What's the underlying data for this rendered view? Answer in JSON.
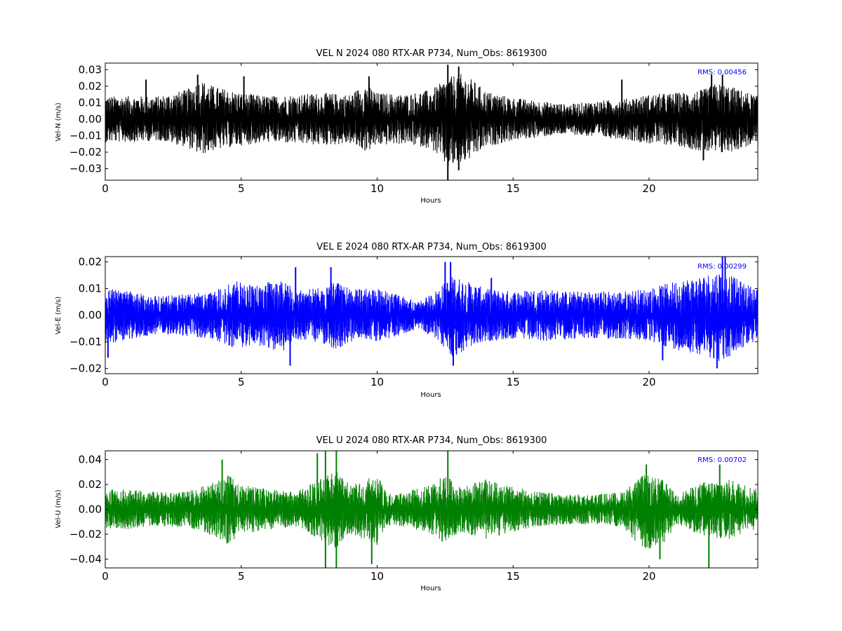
{
  "chart_data": [
    {
      "type": "line",
      "title": "VEL N 2024 080 RTX-AR  P734, Num_Obs: 8619300",
      "xlabel": "Hours",
      "ylabel": "Vel-N (m/s)",
      "xlim": [
        0,
        24
      ],
      "ylim": [
        -0.037,
        0.034
      ],
      "x_ticks": [
        0,
        5,
        10,
        15,
        20
      ],
      "x_tick_labels": [
        "0",
        "5",
        "10",
        "15",
        "20"
      ],
      "y_ticks": [
        -0.03,
        -0.02,
        -0.01,
        0.0,
        0.01,
        0.02,
        0.03
      ],
      "y_tick_labels": [
        "−0.03",
        "−0.02",
        "−0.01",
        "0.00",
        "0.01",
        "0.02",
        "0.03"
      ],
      "grid": false,
      "annotation": "RMS:  0.00456",
      "annotation_color": "#0000ff",
      "series": [
        {
          "color": "#000000",
          "envelope": {
            "hours": [
              0,
              1,
              2,
              3,
              3.5,
              4,
              5,
              6,
              7,
              8,
              9,
              9.6,
              10,
              11,
              12,
              12.6,
              13,
              13.5,
              14,
              15,
              16,
              17,
              18,
              19,
              20,
              21,
              22,
              22.5,
              23,
              24
            ],
            "upper": [
              0.014,
              0.014,
              0.014,
              0.018,
              0.024,
              0.02,
              0.016,
              0.014,
              0.015,
              0.016,
              0.015,
              0.022,
              0.016,
              0.015,
              0.018,
              0.025,
              0.028,
              0.024,
              0.017,
              0.013,
              0.011,
              0.009,
              0.011,
              0.012,
              0.015,
              0.016,
              0.018,
              0.022,
              0.02,
              0.014
            ],
            "lower": [
              -0.014,
              -0.014,
              -0.013,
              -0.017,
              -0.022,
              -0.019,
              -0.016,
              -0.014,
              -0.015,
              -0.016,
              -0.015,
              -0.02,
              -0.016,
              -0.015,
              -0.018,
              -0.03,
              -0.028,
              -0.024,
              -0.017,
              -0.013,
              -0.011,
              -0.009,
              -0.011,
              -0.012,
              -0.015,
              -0.016,
              -0.02,
              -0.022,
              -0.02,
              -0.015
            ]
          },
          "spikes": [
            [
              1.5,
              0.024
            ],
            [
              3.4,
              0.027
            ],
            [
              5.1,
              0.026
            ],
            [
              9.7,
              0.026
            ],
            [
              12.6,
              0.033
            ],
            [
              12.6,
              -0.037
            ],
            [
              13.0,
              0.032
            ],
            [
              13.0,
              -0.031
            ],
            [
              19.0,
              0.024
            ],
            [
              22.0,
              -0.025
            ],
            [
              22.3,
              0.027
            ],
            [
              22.7,
              0.027
            ]
          ]
        }
      ]
    },
    {
      "type": "line",
      "title": "VEL E 2024 080 RTX-AR  P734, Num_Obs: 8619300",
      "xlabel": "Hours",
      "ylabel": "Vel-E (m/s)",
      "xlim": [
        0,
        24
      ],
      "ylim": [
        -0.022,
        0.022
      ],
      "x_ticks": [
        0,
        5,
        10,
        15,
        20
      ],
      "x_tick_labels": [
        "0",
        "5",
        "10",
        "15",
        "20"
      ],
      "y_ticks": [
        -0.02,
        -0.01,
        0.0,
        0.01,
        0.02
      ],
      "y_tick_labels": [
        "−0.02",
        "−0.01",
        "0.00",
        "0.01",
        "0.02"
      ],
      "grid": false,
      "annotation": "RMS:  0.00299",
      "annotation_color": "#0000ff",
      "series": [
        {
          "color": "#0000ff",
          "envelope": {
            "hours": [
              0,
              1,
              2,
              3,
              4,
              4.8,
              5.5,
              6.5,
              7,
              8,
              8.5,
              9,
              10,
              11,
              11.5,
              12,
              12.8,
              13.5,
              14,
              15,
              16,
              17,
              18,
              19,
              20,
              21,
              22,
              22.7,
              23.5,
              24
            ],
            "upper": [
              0.01,
              0.009,
              0.007,
              0.008,
              0.009,
              0.013,
              0.011,
              0.014,
              0.009,
              0.011,
              0.013,
              0.01,
              0.01,
              0.007,
              0.005,
              0.008,
              0.015,
              0.012,
              0.01,
              0.009,
              0.01,
              0.009,
              0.009,
              0.009,
              0.01,
              0.013,
              0.015,
              0.017,
              0.012,
              0.01
            ],
            "lower": [
              -0.011,
              -0.009,
              -0.007,
              -0.008,
              -0.009,
              -0.013,
              -0.011,
              -0.014,
              -0.009,
              -0.011,
              -0.013,
              -0.01,
              -0.01,
              -0.007,
              -0.005,
              -0.008,
              -0.016,
              -0.012,
              -0.01,
              -0.009,
              -0.01,
              -0.009,
              -0.009,
              -0.009,
              -0.01,
              -0.013,
              -0.015,
              -0.018,
              -0.012,
              -0.01
            ]
          },
          "spikes": [
            [
              0.1,
              -0.016
            ],
            [
              6.8,
              -0.019
            ],
            [
              7.0,
              0.018
            ],
            [
              8.3,
              0.018
            ],
            [
              12.5,
              0.02
            ],
            [
              12.7,
              0.02
            ],
            [
              12.8,
              -0.019
            ],
            [
              14.2,
              0.014
            ],
            [
              20.5,
              -0.017
            ],
            [
              22.5,
              -0.02
            ],
            [
              22.7,
              0.022
            ],
            [
              22.8,
              0.022
            ]
          ]
        }
      ]
    },
    {
      "type": "line",
      "title": "VEL U 2024 080 RTX-AR  P734, Num_Obs: 8619300",
      "xlabel": "Hours",
      "ylabel": "Vel-U (m/s)",
      "xlim": [
        0,
        24
      ],
      "ylim": [
        -0.047,
        0.047
      ],
      "x_ticks": [
        0,
        5,
        10,
        15,
        20
      ],
      "x_tick_labels": [
        "0",
        "5",
        "10",
        "15",
        "20"
      ],
      "y_ticks": [
        -0.04,
        -0.02,
        0.0,
        0.02,
        0.04
      ],
      "y_tick_labels": [
        "−0.04",
        "−0.02",
        "0.00",
        "0.02",
        "0.04"
      ],
      "grid": false,
      "annotation": "RMS:  0.00702",
      "annotation_color": "#0000ff",
      "series": [
        {
          "color": "#008000",
          "envelope": {
            "hours": [
              0,
              1,
              2,
              3,
              4,
              4.5,
              5,
              6,
              7,
              8,
              8.5,
              9,
              9.5,
              10,
              10.5,
              11,
              12,
              12.5,
              13,
              14,
              15,
              16,
              17,
              18,
              19,
              19.8,
              20.5,
              21,
              22,
              23,
              24
            ],
            "upper": [
              0.016,
              0.016,
              0.014,
              0.014,
              0.022,
              0.028,
              0.02,
              0.016,
              0.014,
              0.026,
              0.032,
              0.02,
              0.024,
              0.028,
              0.012,
              0.014,
              0.02,
              0.028,
              0.018,
              0.024,
              0.018,
              0.014,
              0.012,
              0.012,
              0.014,
              0.028,
              0.024,
              0.012,
              0.022,
              0.024,
              0.016
            ],
            "lower": [
              -0.016,
              -0.016,
              -0.014,
              -0.014,
              -0.022,
              -0.028,
              -0.02,
              -0.016,
              -0.014,
              -0.026,
              -0.032,
              -0.02,
              -0.024,
              -0.03,
              -0.012,
              -0.014,
              -0.02,
              -0.028,
              -0.018,
              -0.024,
              -0.018,
              -0.014,
              -0.012,
              -0.012,
              -0.014,
              -0.034,
              -0.03,
              -0.012,
              -0.022,
              -0.024,
              -0.016
            ]
          },
          "spikes": [
            [
              4.3,
              0.04
            ],
            [
              7.8,
              0.045
            ],
            [
              8.1,
              0.047
            ],
            [
              8.1,
              -0.047
            ],
            [
              8.5,
              0.047
            ],
            [
              8.5,
              -0.047
            ],
            [
              9.8,
              -0.044
            ],
            [
              12.6,
              0.047
            ],
            [
              19.9,
              0.036
            ],
            [
              20.4,
              -0.04
            ],
            [
              22.2,
              -0.047
            ],
            [
              22.6,
              0.036
            ]
          ]
        }
      ]
    }
  ]
}
